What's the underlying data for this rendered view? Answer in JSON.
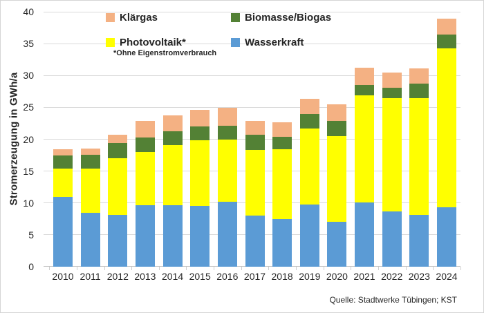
{
  "chart_data": {
    "type": "bar",
    "stacked": true,
    "title": "",
    "ylabel": "Stromerzeugung in GWh/a",
    "xlabel": "",
    "ylim": [
      0,
      40
    ],
    "yticks": [
      0,
      5,
      10,
      15,
      20,
      25,
      30,
      35,
      40
    ],
    "grid": true,
    "legend_position": "top-inside",
    "categories": [
      "2010",
      "2011",
      "2012",
      "2013",
      "2014",
      "2015",
      "2016",
      "2017",
      "2018",
      "2019",
      "2020",
      "2021",
      "2022",
      "2023",
      "2024"
    ],
    "series": [
      {
        "name": "Wasserkraft",
        "color": "#5B9BD5",
        "values": [
          11.0,
          8.5,
          8.1,
          9.7,
          9.6,
          9.5,
          10.2,
          8.0,
          7.5,
          9.8,
          7.0,
          10.1,
          8.7,
          8.1,
          9.3
        ]
      },
      {
        "name": "Photovoltaik*",
        "color": "#FFFF00",
        "values": [
          4.4,
          6.9,
          8.9,
          8.3,
          9.5,
          10.3,
          9.7,
          10.3,
          10.9,
          11.9,
          13.5,
          16.8,
          17.8,
          18.4,
          25.0
        ]
      },
      {
        "name": "Biomasse/Biogas",
        "color": "#538135",
        "values": [
          2.1,
          2.2,
          2.4,
          2.3,
          2.1,
          2.2,
          2.2,
          2.4,
          2.0,
          2.3,
          2.4,
          1.6,
          1.6,
          2.2,
          2.1
        ]
      },
      {
        "name": "Klärgas",
        "color": "#F4B183",
        "values": [
          0.9,
          0.9,
          1.3,
          2.6,
          2.5,
          2.6,
          2.8,
          2.2,
          2.3,
          2.4,
          2.6,
          2.7,
          2.4,
          2.4,
          2.5
        ]
      }
    ],
    "footnote": "*Ohne Eigenstromverbrauch",
    "source": "Quelle: Stadtwerke Tübingen; KST",
    "colors": {
      "gridline": "#d9d9d9",
      "text": "#262626"
    }
  }
}
